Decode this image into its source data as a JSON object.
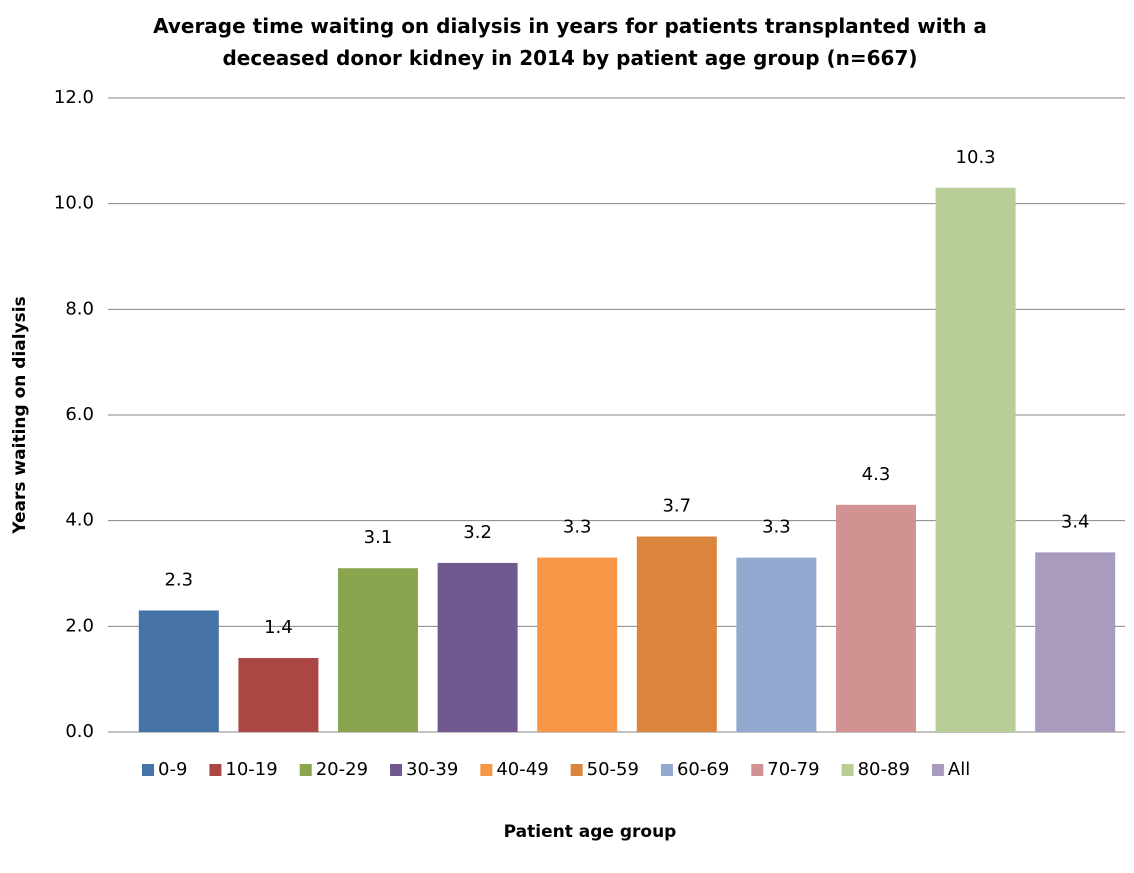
{
  "chart_data": {
    "type": "bar",
    "title": "Average time waiting on dialysis in years for patients transplanted with a deceased donor kidney in 2014 by patient age group (n=667)",
    "y_label": "Years waiting on dialysis",
    "x_label": "Patient age group",
    "categories": [
      null
    ],
    "series": [
      {
        "name": "0-9",
        "color": "#4572a7",
        "values": [
          2.3
        ]
      },
      {
        "name": "10-19",
        "color": "#aa4643",
        "values": [
          1.4
        ]
      },
      {
        "name": "20-29",
        "color": "#89a54e",
        "values": [
          3.1
        ]
      },
      {
        "name": "30-39",
        "color": "#71588f",
        "values": [
          3.2
        ]
      },
      {
        "name": "40-49",
        "color": "#f79646",
        "values": [
          3.3
        ]
      },
      {
        "name": "50-59",
        "color": "#db843d",
        "values": [
          3.7
        ]
      },
      {
        "name": "60-69",
        "color": "#93a9cf",
        "values": [
          3.3
        ]
      },
      {
        "name": "70-79",
        "color": "#d19392",
        "values": [
          4.3
        ]
      },
      {
        "name": "80-89",
        "color": "#b9cd96",
        "values": [
          10.3
        ]
      },
      {
        "name": "All",
        "color": "#a99bbd",
        "values": [
          3.4
        ]
      }
    ],
    "ylim": [
      0,
      12
    ],
    "yticks": [
      {
        "value": 0,
        "label": "0.0"
      },
      {
        "value": 2,
        "label": "2.0"
      },
      {
        "value": 4,
        "label": "4.0"
      },
      {
        "value": 6,
        "label": "6.0"
      },
      {
        "value": 8,
        "label": "8.0"
      },
      {
        "value": 10,
        "label": "10.0"
      },
      {
        "value": 12,
        "label": "12.0"
      }
    ],
    "grid": true,
    "legend": "bottom"
  }
}
